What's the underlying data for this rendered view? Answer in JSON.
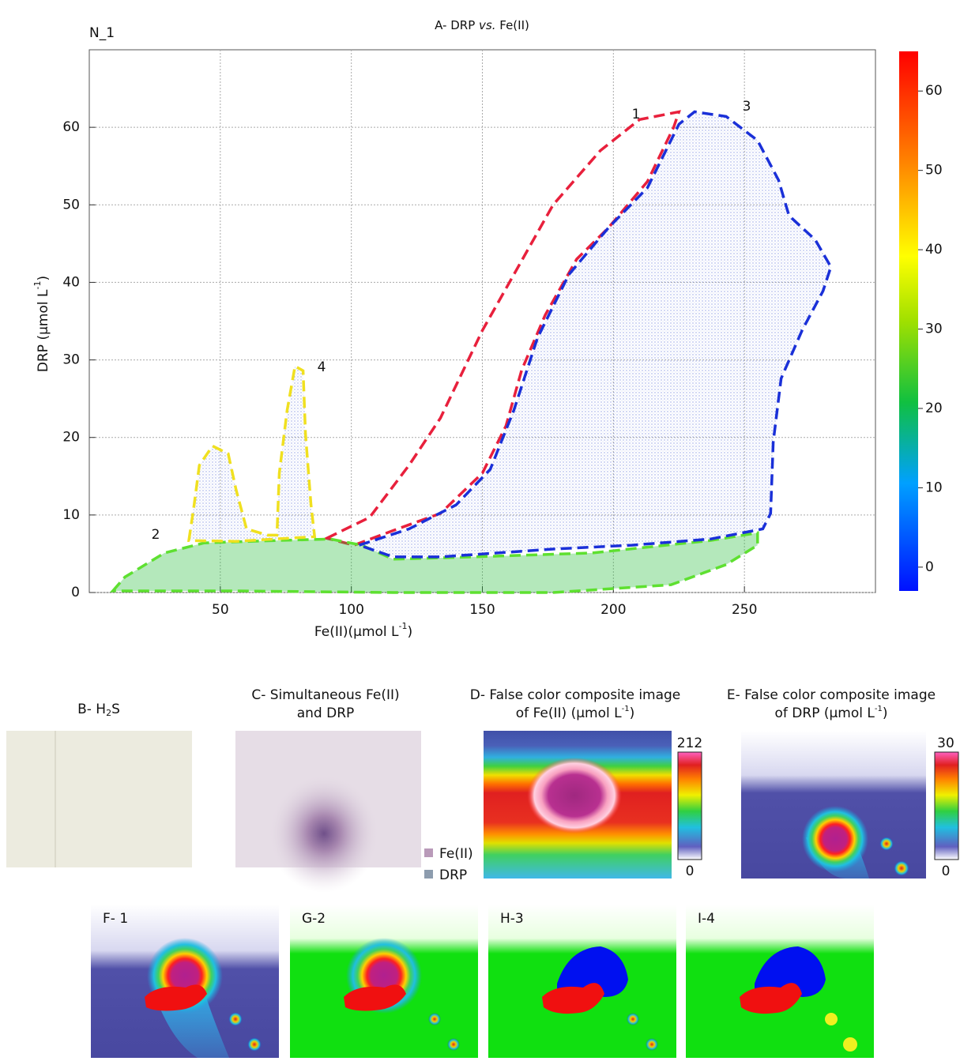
{
  "chart_data": {
    "type": "scatter",
    "label": "N_1",
    "title": {
      "prefix": "A- DRP ",
      "italic": "vs.",
      "suffix": " Fe(II)"
    },
    "x_label": {
      "text": "Fe(II)(µmol L",
      "sup": "-1",
      "end": ")"
    },
    "y_label": {
      "text": "DRP (µmol L",
      "sup": "-1",
      "end": ")"
    },
    "xlim": [
      0,
      300
    ],
    "ylim": [
      0,
      70
    ],
    "xticks": [
      50,
      100,
      150,
      200,
      250
    ],
    "yticks": [
      0,
      10,
      20,
      30,
      40,
      50,
      60
    ],
    "grid": true,
    "colorbar": {
      "lim": [
        -3,
        65
      ],
      "ticks": [
        0,
        10,
        20,
        30,
        40,
        50,
        60
      ]
    },
    "regions": [
      {
        "label": "1",
        "color": "#e8203c",
        "x": [
          90.6,
          107,
          122,
          134,
          150,
          162,
          177,
          195,
          210,
          225,
          223,
          213,
          198,
          186,
          174,
          165,
          159,
          150,
          134,
          116,
          101
        ],
        "y": [
          7.0,
          9.7,
          16.4,
          22.5,
          33.8,
          41,
          50,
          57,
          61,
          62,
          60,
          53,
          47,
          43,
          35.8,
          28.7,
          21.5,
          15.4,
          10.2,
          8,
          6.1
        ]
      },
      {
        "label": "2",
        "color": "#5ee030",
        "x": [
          9,
          13.6,
          28.7,
          43.8,
          71,
          92,
          104,
          116,
          146.5,
          192,
          237,
          255,
          255,
          243,
          222,
          177,
          116,
          56
        ],
        "y": [
          0.2,
          2.0,
          5.1,
          6.4,
          6.7,
          6.9,
          6.1,
          4.3,
          4.6,
          5.1,
          6.7,
          7.7,
          6.1,
          3.6,
          1.0,
          0,
          0,
          0.2
        ]
      },
      {
        "label": "3",
        "color": "#1a30d8",
        "x": [
          103,
          122,
          140,
          153,
          162,
          171,
          183,
          198,
          213,
          225,
          231,
          243,
          255,
          263,
          267,
          277,
          283,
          280,
          272,
          264,
          261,
          260,
          257,
          237,
          207,
          177,
          134,
          116
        ],
        "y": [
          6.1,
          8.2,
          11.3,
          15.9,
          23.5,
          32.8,
          41,
          47,
          52.2,
          60.4,
          62,
          61.4,
          58.3,
          53.2,
          48.6,
          45.5,
          42,
          38.9,
          33.8,
          27.6,
          19.4,
          10.2,
          8.2,
          6.9,
          6.1,
          5.6,
          4.6,
          4.6
        ]
      },
      {
        "label": "4",
        "color": "#f0e020",
        "x": [
          38,
          40,
          42,
          47,
          53,
          56,
          60,
          68,
          71.6,
          72.5,
          75.5,
          78.5,
          81.6,
          82.5,
          84.6,
          86,
          56
        ],
        "y": [
          6.7,
          11.3,
          16.4,
          18.9,
          17.9,
          13.3,
          8.2,
          7.4,
          7.4,
          15.4,
          23.5,
          29.2,
          28.6,
          20.5,
          11.3,
          7.2,
          6.6
        ]
      }
    ]
  },
  "panels": {
    "b": {
      "title": "B- H",
      "sub": "2",
      "end": "S"
    },
    "c": {
      "title": [
        "C- Simultaneous Fe(II)",
        "and DRP"
      ],
      "legend": [
        {
          "name": "Fe(II)",
          "color": "#b99ab9"
        },
        {
          "name": "DRP",
          "color": "#8d9cae"
        }
      ]
    },
    "d": {
      "title": [
        "D- False color composite image",
        "of Fe(II) (µmol L"
      ],
      "sup": "-1",
      "end": ")",
      "colorbar": [
        212,
        0
      ]
    },
    "e": {
      "title": [
        "E- False color composite image",
        "of DRP (µmol L"
      ],
      "sup": "-1",
      "end": ")",
      "colorbar": [
        30,
        0
      ]
    },
    "subpanels": [
      "F- 1",
      "G-2",
      "H-3",
      "I-4"
    ]
  }
}
